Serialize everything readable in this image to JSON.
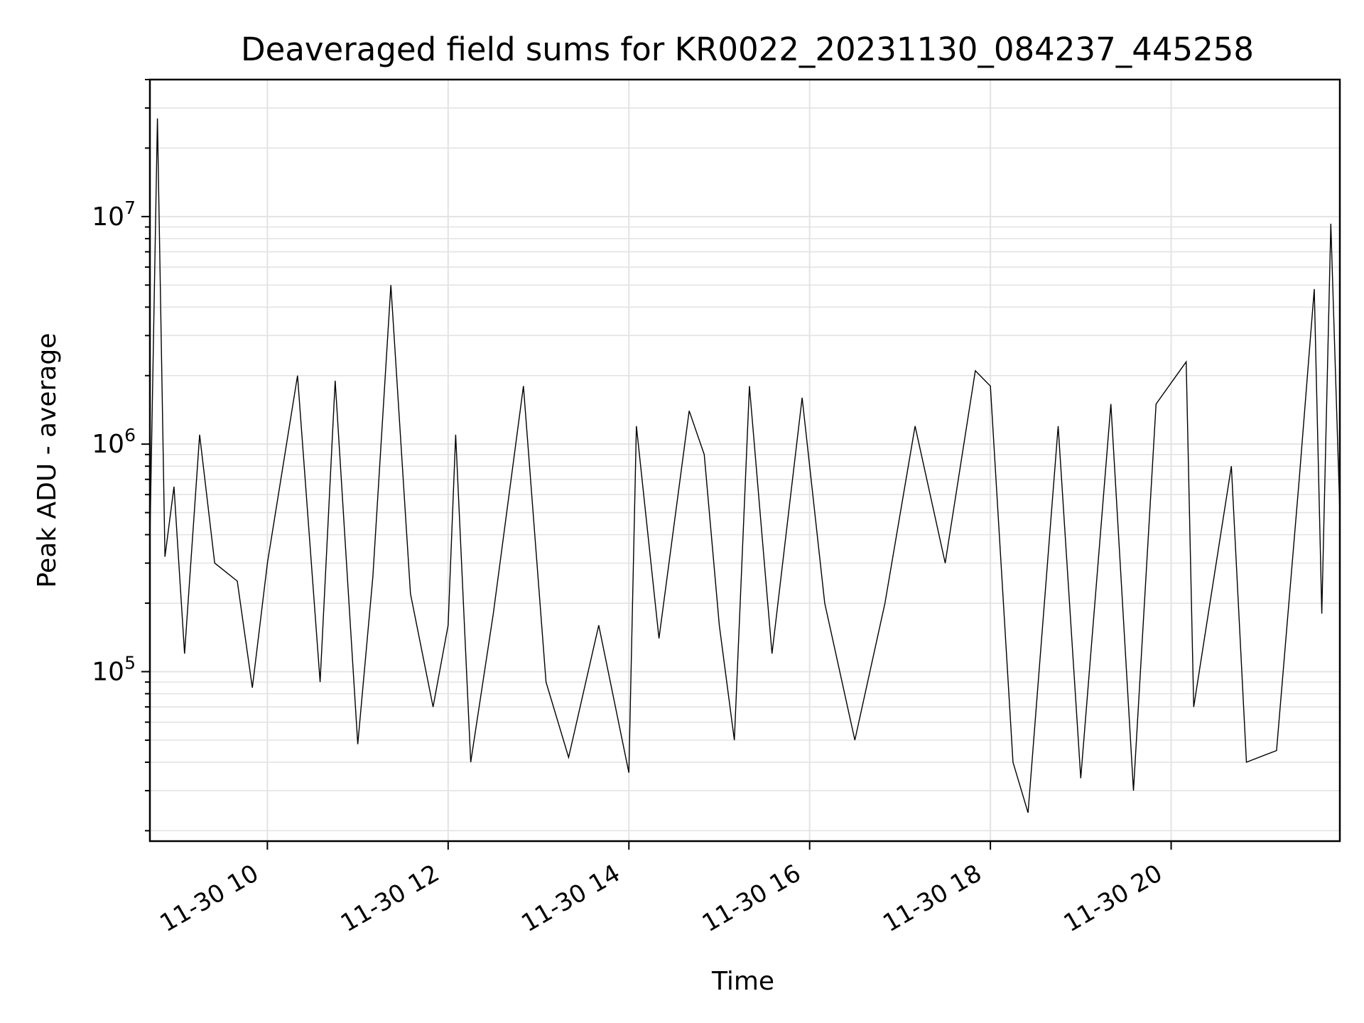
{
  "chart_data": {
    "type": "line",
    "title": "Deaveraged field sums for KR0022_20231130_084237_445258",
    "xlabel": "Time",
    "ylabel": "Peak ADU - average",
    "yscale": "log",
    "xlim": [
      "2023-11-30 08:42",
      "2023-11-30 21:52"
    ],
    "ylim": [
      18000,
      40000000
    ],
    "grid": true,
    "line_color": "#000000",
    "grid_color": "#e3e3e3",
    "x_ticks": [
      {
        "value": "2023-11-30 10:00",
        "label": "11-30 10"
      },
      {
        "value": "2023-11-30 12:00",
        "label": "11-30 12"
      },
      {
        "value": "2023-11-30 14:00",
        "label": "11-30 14"
      },
      {
        "value": "2023-11-30 16:00",
        "label": "11-30 16"
      },
      {
        "value": "2023-11-30 18:00",
        "label": "11-30 18"
      },
      {
        "value": "2023-11-30 20:00",
        "label": "11-30 20"
      }
    ],
    "y_ticks": [
      {
        "value": 100000,
        "base": "10",
        "exp": "5"
      },
      {
        "value": 1000000,
        "base": "10",
        "exp": "6"
      },
      {
        "value": 10000000,
        "base": "10",
        "exp": "7"
      }
    ],
    "series": [
      {
        "points": [
          [
            "2023-11-30 08:42",
            380000
          ],
          [
            "2023-11-30 08:47",
            27000000
          ],
          [
            "2023-11-30 08:52",
            320000
          ],
          [
            "2023-11-30 08:58",
            650000
          ],
          [
            "2023-11-30 09:05",
            120000
          ],
          [
            "2023-11-30 09:15",
            1100000
          ],
          [
            "2023-11-30 09:25",
            300000
          ],
          [
            "2023-11-30 09:40",
            250000
          ],
          [
            "2023-11-30 09:50",
            85000
          ],
          [
            "2023-11-30 10:00",
            300000
          ],
          [
            "2023-11-30 10:20",
            2000000
          ],
          [
            "2023-11-30 10:35",
            90000
          ],
          [
            "2023-11-30 10:45",
            1900000
          ],
          [
            "2023-11-30 11:00",
            48000
          ],
          [
            "2023-11-30 11:10",
            260000
          ],
          [
            "2023-11-30 11:22",
            5000000
          ],
          [
            "2023-11-30 11:35",
            220000
          ],
          [
            "2023-11-30 11:50",
            70000
          ],
          [
            "2023-11-30 12:00",
            160000
          ],
          [
            "2023-11-30 12:05",
            1100000
          ],
          [
            "2023-11-30 12:15",
            40000
          ],
          [
            "2023-11-30 12:30",
            180000
          ],
          [
            "2023-11-30 12:50",
            1800000
          ],
          [
            "2023-11-30 13:05",
            90000
          ],
          [
            "2023-11-30 13:20",
            42000
          ],
          [
            "2023-11-30 13:40",
            160000
          ],
          [
            "2023-11-30 14:00",
            36000
          ],
          [
            "2023-11-30 14:05",
            1200000
          ],
          [
            "2023-11-30 14:20",
            140000
          ],
          [
            "2023-11-30 14:40",
            1400000
          ],
          [
            "2023-11-30 14:50",
            900000
          ],
          [
            "2023-11-30 15:00",
            160000
          ],
          [
            "2023-11-30 15:10",
            50000
          ],
          [
            "2023-11-30 15:20",
            1800000
          ],
          [
            "2023-11-30 15:35",
            120000
          ],
          [
            "2023-11-30 15:55",
            1600000
          ],
          [
            "2023-11-30 16:10",
            200000
          ],
          [
            "2023-11-30 16:30",
            50000
          ],
          [
            "2023-11-30 16:50",
            200000
          ],
          [
            "2023-11-30 17:10",
            1200000
          ],
          [
            "2023-11-30 17:30",
            300000
          ],
          [
            "2023-11-30 17:50",
            2100000
          ],
          [
            "2023-11-30 18:00",
            1800000
          ],
          [
            "2023-11-30 18:15",
            40000
          ],
          [
            "2023-11-30 18:25",
            24000
          ],
          [
            "2023-11-30 18:45",
            1200000
          ],
          [
            "2023-11-30 19:00",
            34000
          ],
          [
            "2023-11-30 19:20",
            1500000
          ],
          [
            "2023-11-30 19:35",
            30000
          ],
          [
            "2023-11-30 19:50",
            1500000
          ],
          [
            "2023-11-30 20:10",
            2300000
          ],
          [
            "2023-11-30 20:15",
            70000
          ],
          [
            "2023-11-30 20:40",
            800000
          ],
          [
            "2023-11-30 20:50",
            40000
          ],
          [
            "2023-11-30 21:10",
            45000
          ],
          [
            "2023-11-30 21:25",
            700000
          ],
          [
            "2023-11-30 21:35",
            4800000
          ],
          [
            "2023-11-30 21:40",
            180000
          ],
          [
            "2023-11-30 21:46",
            9300000
          ],
          [
            "2023-11-30 21:52",
            500000
          ]
        ]
      }
    ]
  }
}
